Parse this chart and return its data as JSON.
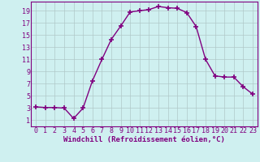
{
  "x": [
    0,
    1,
    2,
    3,
    4,
    5,
    6,
    7,
    8,
    9,
    10,
    11,
    12,
    13,
    14,
    15,
    16,
    17,
    18,
    19,
    20,
    21,
    22,
    23
  ],
  "y": [
    3.2,
    3.1,
    3.1,
    3.0,
    1.3,
    3.0,
    7.5,
    11.0,
    14.3,
    16.5,
    18.8,
    19.0,
    19.2,
    19.7,
    19.5,
    19.4,
    18.7,
    16.4,
    11.0,
    8.3,
    8.1,
    8.1,
    6.5,
    5.3
  ],
  "line_color": "#800080",
  "marker": "+",
  "marker_size": 4,
  "marker_lw": 1.2,
  "bg_color": "#cff0f0",
  "grid_color": "#b0c8c8",
  "xlabel": "Windchill (Refroidissement éolien,°C)",
  "xlabel_fontsize": 6.5,
  "ylabel_ticks": [
    1,
    3,
    5,
    7,
    9,
    11,
    13,
    15,
    17,
    19
  ],
  "xticks": [
    0,
    1,
    2,
    3,
    4,
    5,
    6,
    7,
    8,
    9,
    10,
    11,
    12,
    13,
    14,
    15,
    16,
    17,
    18,
    19,
    20,
    21,
    22,
    23
  ],
  "xlim": [
    -0.5,
    23.5
  ],
  "ylim": [
    0,
    20.5
  ],
  "tick_fontsize": 6,
  "tick_color": "#800080",
  "label_color": "#800080",
  "spine_color": "#800080",
  "line_width": 1.0
}
